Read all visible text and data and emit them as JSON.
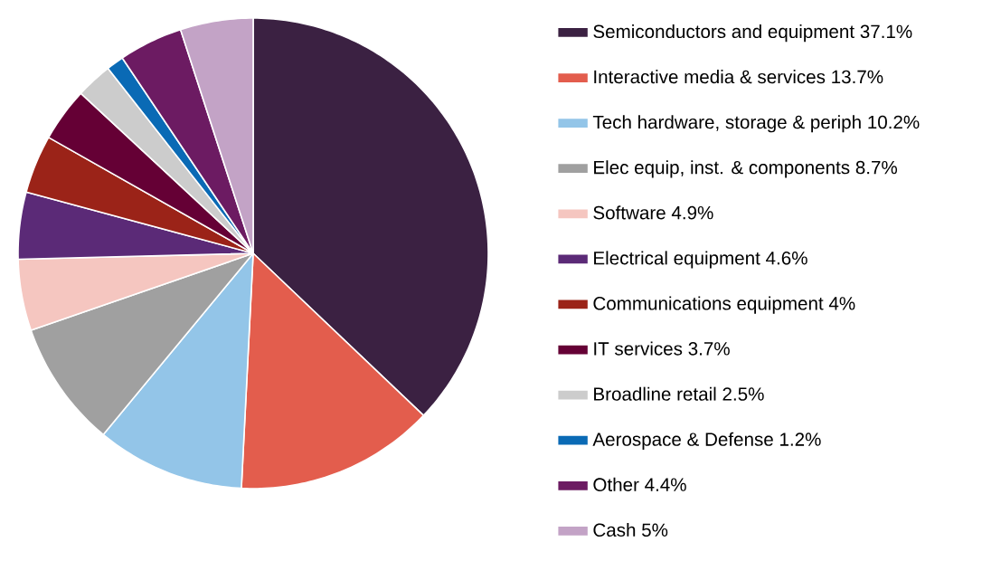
{
  "chart_data": {
    "type": "pie",
    "categories": [
      "Semiconductors and equipment 37.1%",
      "Interactive media & services 13.7%",
      "Tech hardware, storage & periph 10.2%",
      "Elec equip, inst. & components 8.7%",
      "Software 4.9%",
      "Electrical equipment 4.6%",
      "Communications equipment 4%",
      "IT services 3.7%",
      "Broadline retail 2.5%",
      "Aerospace & Defense 1.2%",
      "Other 4.4%",
      "Cash 5%"
    ],
    "values": [
      37.1,
      13.7,
      10.2,
      8.7,
      4.9,
      4.6,
      4,
      3.7,
      2.5,
      1.2,
      4.4,
      5
    ],
    "colors": [
      "#3b2142",
      "#e35d4d",
      "#93c5e8",
      "#a0a0a0",
      "#f5c6c0",
      "#5b2a77",
      "#9b2318",
      "#650035",
      "#cccccc",
      "#0a6ab5",
      "#6c1b62",
      "#c3a3c6"
    ],
    "legend": "right"
  }
}
